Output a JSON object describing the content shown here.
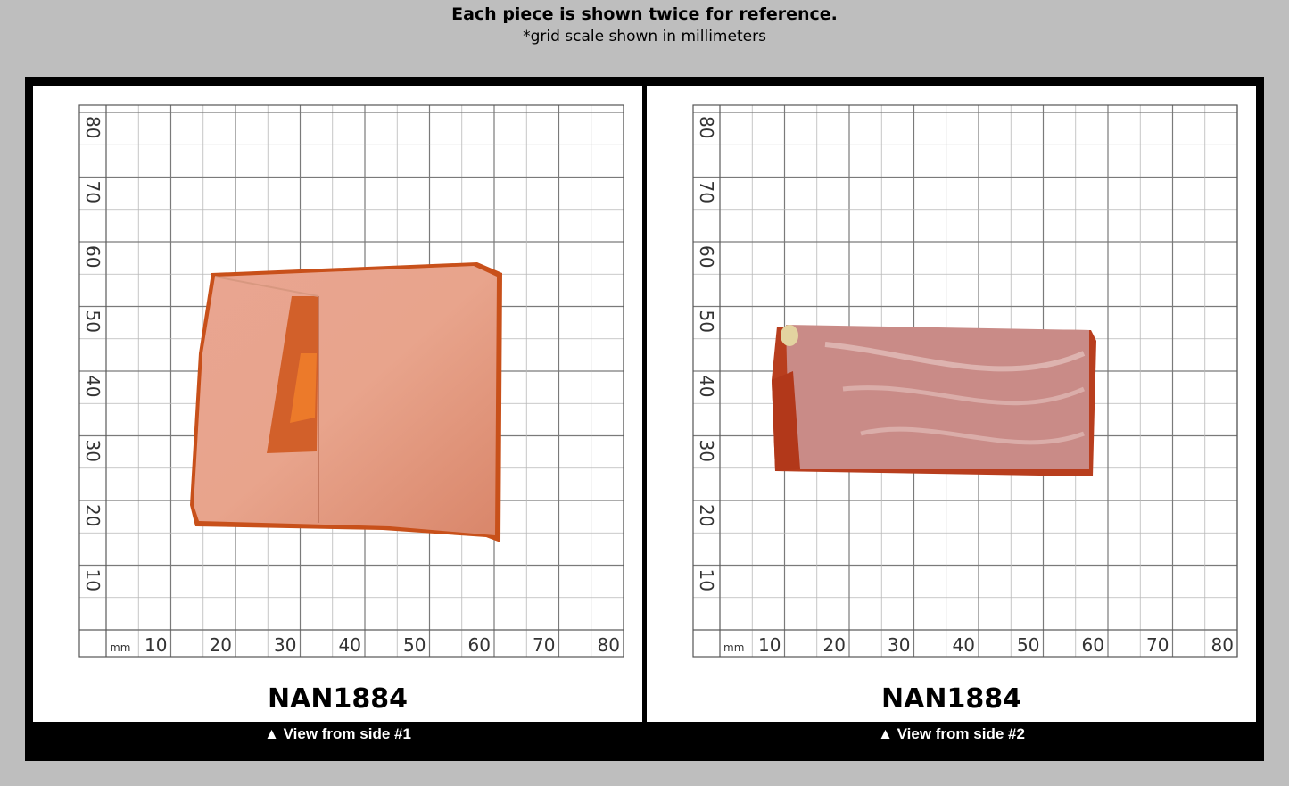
{
  "header": {
    "title": "Each piece is shown twice for reference.",
    "subtitle": "*grid scale shown in millimeters"
  },
  "grid": {
    "unit_label": "mm",
    "x_ticks": [
      "10",
      "20",
      "30",
      "40",
      "50",
      "60",
      "70",
      "80"
    ],
    "y_ticks": [
      "10",
      "20",
      "30",
      "40",
      "50",
      "60",
      "70",
      "80"
    ]
  },
  "panels": [
    {
      "sku": "NAN1884",
      "caption": "▲ View from side #1"
    },
    {
      "sku": "NAN1884",
      "caption": "▲ View from side #2"
    }
  ]
}
